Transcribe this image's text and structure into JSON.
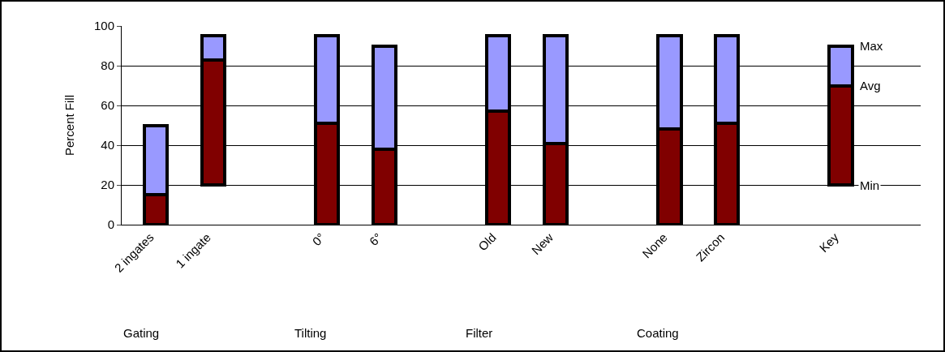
{
  "chart_data": {
    "type": "bar",
    "stacked": true,
    "ylabel": "Percent Fill",
    "categories": [
      "2 ingates",
      "1 ingate",
      null,
      "0°",
      "6°",
      null,
      "Old",
      "New",
      null,
      "None",
      "Zircon",
      null,
      "Key",
      null
    ],
    "series": [
      {
        "color": "#800000",
        "base": [
          0,
          20,
          null,
          0,
          0,
          null,
          0,
          0,
          null,
          0,
          0,
          null,
          20,
          null
        ],
        "values": [
          15,
          63,
          null,
          51,
          38,
          null,
          57,
          41,
          null,
          48,
          51,
          null,
          50,
          null
        ]
      },
      {
        "color": "#9999ff",
        "values": [
          35,
          12,
          null,
          44,
          52,
          null,
          38,
          54,
          null,
          47,
          44,
          null,
          20,
          null
        ]
      }
    ],
    "ylim": [
      0,
      100
    ],
    "yticks": [
      0,
      20,
      40,
      60,
      80,
      100
    ],
    "grid": "y",
    "annotations": [
      {
        "text": "Max",
        "x": "Key",
        "y": 90
      },
      {
        "text": "Avg",
        "x": "Key",
        "y": 70
      },
      {
        "text": "Min",
        "x": "Key",
        "y": 20
      },
      "Gating",
      "Tilting",
      "Filter",
      "Coating"
    ]
  }
}
